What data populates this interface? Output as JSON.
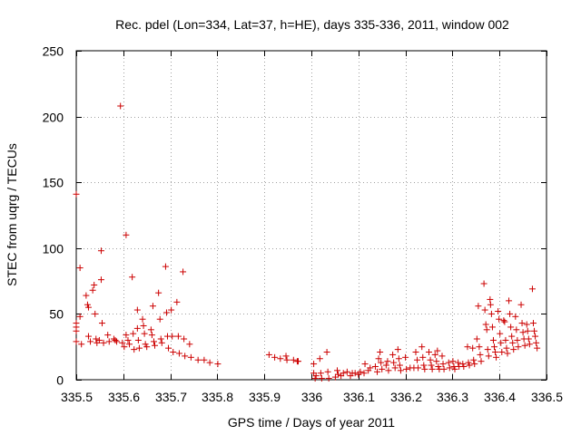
{
  "chart_data": {
    "type": "scatter",
    "title": "Rec. pdel (Lon=334, Lat=37, h=HE), days 335-336, 2011, window 002",
    "xlabel": "GPS time / Days of year 2011",
    "ylabel": "STEC from uqrg / TECUs",
    "xlim": [
      335.5,
      336.5
    ],
    "ylim": [
      0,
      250
    ],
    "x_ticks": [
      335.5,
      335.6,
      335.7,
      335.8,
      335.9,
      336,
      336.1,
      336.2,
      336.3,
      336.4,
      336.5
    ],
    "x_tick_labels": [
      "335.5",
      "335.6",
      "335.7",
      "335.8",
      "335.9",
      "336",
      "336.1",
      "336.2",
      "336.3",
      "336.4",
      "336.5"
    ],
    "y_ticks": [
      0,
      50,
      100,
      150,
      200,
      250
    ],
    "y_tick_labels": [
      "0",
      "50",
      "100",
      "150",
      "200",
      "250"
    ],
    "grid": true,
    "marker": "plus",
    "color": "#cc0000",
    "series": [
      {
        "name": "STEC",
        "points": [
          [
            335.5,
            141
          ],
          [
            335.5,
            43
          ],
          [
            335.5,
            40
          ],
          [
            335.5,
            37
          ],
          [
            335.5,
            29
          ],
          [
            335.508,
            85
          ],
          [
            335.508,
            48
          ],
          [
            335.511,
            27
          ],
          [
            335.521,
            64
          ],
          [
            335.524,
            57
          ],
          [
            335.526,
            55
          ],
          [
            335.526,
            33
          ],
          [
            335.53,
            29
          ],
          [
            335.535,
            68
          ],
          [
            335.538,
            72
          ],
          [
            335.54,
            50
          ],
          [
            335.542,
            31
          ],
          [
            335.544,
            28
          ],
          [
            335.549,
            30
          ],
          [
            335.553,
            98
          ],
          [
            335.553,
            76
          ],
          [
            335.555,
            43
          ],
          [
            335.558,
            28
          ],
          [
            335.567,
            34
          ],
          [
            335.57,
            29
          ],
          [
            335.58,
            31
          ],
          [
            335.583,
            30
          ],
          [
            335.586,
            29
          ],
          [
            335.594,
            208
          ],
          [
            335.598,
            28
          ],
          [
            335.602,
            25
          ],
          [
            335.606,
            110
          ],
          [
            335.606,
            34
          ],
          [
            335.61,
            30
          ],
          [
            335.613,
            27
          ],
          [
            335.619,
            78
          ],
          [
            335.621,
            35
          ],
          [
            335.623,
            23
          ],
          [
            335.63,
            53
          ],
          [
            335.63,
            39
          ],
          [
            335.632,
            30
          ],
          [
            335.634,
            24
          ],
          [
            335.641,
            46
          ],
          [
            335.643,
            41
          ],
          [
            335.645,
            35
          ],
          [
            335.647,
            27
          ],
          [
            335.65,
            25
          ],
          [
            335.659,
            38
          ],
          [
            335.661,
            34
          ],
          [
            335.663,
            56
          ],
          [
            335.665,
            29
          ],
          [
            335.667,
            26
          ],
          [
            335.675,
            66
          ],
          [
            335.678,
            46
          ],
          [
            335.68,
            31
          ],
          [
            335.682,
            28
          ],
          [
            335.69,
            86
          ],
          [
            335.692,
            51
          ],
          [
            335.694,
            33
          ],
          [
            335.696,
            24
          ],
          [
            335.702,
            53
          ],
          [
            335.704,
            33
          ],
          [
            335.706,
            21
          ],
          [
            335.714,
            59
          ],
          [
            335.717,
            33
          ],
          [
            335.719,
            20
          ],
          [
            335.727,
            82
          ],
          [
            335.729,
            31
          ],
          [
            335.731,
            18
          ],
          [
            335.741,
            27
          ],
          [
            335.744,
            17
          ],
          [
            335.759,
            15
          ],
          [
            335.772,
            15
          ],
          [
            335.784,
            13
          ],
          [
            335.801,
            12
          ],
          [
            335.91,
            19
          ],
          [
            335.922,
            17
          ],
          [
            335.934,
            16
          ],
          [
            335.946,
            18
          ],
          [
            335.948,
            15
          ],
          [
            335.962,
            15
          ],
          [
            335.97,
            14
          ],
          [
            335.972,
            14
          ],
          [
            336.005,
            12
          ],
          [
            336.005,
            5
          ],
          [
            336.008,
            1
          ],
          [
            336.01,
            3
          ],
          [
            336.018,
            16
          ],
          [
            336.02,
            5
          ],
          [
            336.022,
            1
          ],
          [
            336.033,
            21
          ],
          [
            336.035,
            6
          ],
          [
            336.037,
            1
          ],
          [
            336.051,
            2
          ],
          [
            336.055,
            7
          ],
          [
            336.057,
            4
          ],
          [
            336.063,
            3
          ],
          [
            336.068,
            5
          ],
          [
            336.076,
            6
          ],
          [
            336.083,
            3
          ],
          [
            336.087,
            5
          ],
          [
            336.093,
            5
          ],
          [
            336.1,
            4
          ],
          [
            336.104,
            6
          ],
          [
            336.112,
            5
          ],
          [
            336.114,
            12
          ],
          [
            336.121,
            7
          ],
          [
            336.125,
            9
          ],
          [
            336.136,
            10
          ],
          [
            336.14,
            6
          ],
          [
            336.143,
            16
          ],
          [
            336.146,
            21
          ],
          [
            336.148,
            13
          ],
          [
            336.15,
            8
          ],
          [
            336.159,
            11
          ],
          [
            336.162,
            14
          ],
          [
            336.164,
            7
          ],
          [
            336.173,
            19
          ],
          [
            336.175,
            13
          ],
          [
            336.178,
            9
          ],
          [
            336.184,
            23
          ],
          [
            336.186,
            16
          ],
          [
            336.188,
            11
          ],
          [
            336.19,
            7
          ],
          [
            336.2,
            17
          ],
          [
            336.202,
            8
          ],
          [
            336.21,
            9
          ],
          [
            336.218,
            9
          ],
          [
            336.222,
            21
          ],
          [
            336.225,
            15
          ],
          [
            336.227,
            9
          ],
          [
            336.235,
            25
          ],
          [
            336.237,
            17
          ],
          [
            336.239,
            11
          ],
          [
            336.241,
            8
          ],
          [
            336.25,
            21
          ],
          [
            336.253,
            15
          ],
          [
            336.255,
            11
          ],
          [
            336.257,
            8
          ],
          [
            336.263,
            19
          ],
          [
            336.266,
            14
          ],
          [
            336.268,
            22
          ],
          [
            336.27,
            10
          ],
          [
            336.272,
            8
          ],
          [
            336.278,
            18
          ],
          [
            336.28,
            12
          ],
          [
            336.282,
            8
          ],
          [
            336.292,
            13
          ],
          [
            336.294,
            9
          ],
          [
            336.301,
            14
          ],
          [
            336.303,
            10
          ],
          [
            336.305,
            8
          ],
          [
            336.312,
            13
          ],
          [
            336.314,
            10
          ],
          [
            336.322,
            12
          ],
          [
            336.324,
            10
          ],
          [
            336.332,
            25
          ],
          [
            336.334,
            13
          ],
          [
            336.336,
            11
          ],
          [
            336.343,
            24
          ],
          [
            336.345,
            15
          ],
          [
            336.347,
            12
          ],
          [
            336.352,
            31
          ],
          [
            336.355,
            56
          ],
          [
            336.357,
            25
          ],
          [
            336.359,
            19
          ],
          [
            336.361,
            14
          ],
          [
            336.367,
            73
          ],
          [
            336.369,
            53
          ],
          [
            336.371,
            42
          ],
          [
            336.373,
            38
          ],
          [
            336.375,
            23
          ],
          [
            336.377,
            18
          ],
          [
            336.38,
            61
          ],
          [
            336.381,
            57
          ],
          [
            336.383,
            50
          ],
          [
            336.385,
            40
          ],
          [
            336.387,
            30
          ],
          [
            336.389,
            25
          ],
          [
            336.391,
            21
          ],
          [
            336.393,
            17
          ],
          [
            336.397,
            52
          ],
          [
            336.399,
            46
          ],
          [
            336.401,
            35
          ],
          [
            336.403,
            28
          ],
          [
            336.405,
            21
          ],
          [
            336.409,
            45
          ],
          [
            336.411,
            44
          ],
          [
            336.413,
            30
          ],
          [
            336.415,
            24
          ],
          [
            336.417,
            20
          ],
          [
            336.42,
            60
          ],
          [
            336.422,
            50
          ],
          [
            336.424,
            40
          ],
          [
            336.426,
            33
          ],
          [
            336.428,
            28
          ],
          [
            336.43,
            23
          ],
          [
            336.434,
            48
          ],
          [
            336.436,
            38
          ],
          [
            336.438,
            30
          ],
          [
            336.44,
            25
          ],
          [
            336.446,
            57
          ],
          [
            336.448,
            43
          ],
          [
            336.45,
            36
          ],
          [
            336.452,
            31
          ],
          [
            336.454,
            26
          ],
          [
            336.458,
            42
          ],
          [
            336.46,
            37
          ],
          [
            336.462,
            31
          ],
          [
            336.464,
            27
          ],
          [
            336.47,
            69
          ],
          [
            336.472,
            43
          ],
          [
            336.474,
            37
          ],
          [
            336.476,
            33
          ],
          [
            336.478,
            28
          ],
          [
            336.48,
            24
          ]
        ]
      }
    ]
  }
}
